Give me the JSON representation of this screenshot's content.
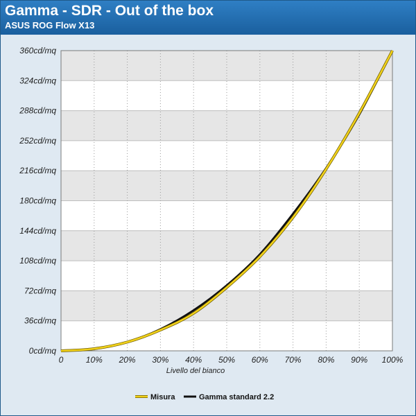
{
  "header": {
    "title": "Gamma - SDR - Out of the box",
    "subtitle": "ASUS ROG Flow X13"
  },
  "chart_data": {
    "type": "line",
    "title": "Gamma - SDR - Out of the box",
    "subtitle": "ASUS ROG Flow X13",
    "xlabel": "Livello del bianco",
    "ylabel": "",
    "x": [
      0,
      10,
      20,
      30,
      40,
      50,
      60,
      70,
      80,
      90,
      100
    ],
    "x_tick_labels": [
      "0",
      "10%",
      "20%",
      "30%",
      "40%",
      "50%",
      "60%",
      "70%",
      "80%",
      "90%",
      "100%"
    ],
    "y_tick_values": [
      0,
      36,
      72,
      108,
      144,
      180,
      216,
      252,
      288,
      324,
      360
    ],
    "y_tick_labels": [
      "0cd/mq",
      "36cd/mq",
      "72cd/mq",
      "108cd/mq",
      "144cd/mq",
      "180cd/mq",
      "216cd/mq",
      "252cd/mq",
      "288cd/mq",
      "324cd/mq",
      "360cd/mq"
    ],
    "xlim": [
      0,
      100
    ],
    "ylim": [
      0,
      360
    ],
    "grid": true,
    "legend_position": "bottom",
    "series": [
      {
        "name": "Misura",
        "color": "#f2d21b",
        "values": [
          0,
          2.5,
          10.5,
          25,
          45,
          76,
          113,
          160,
          218,
          285,
          360
        ]
      },
      {
        "name": "Gamma standard 2.2",
        "color": "#111111",
        "values": [
          0,
          2.3,
          10.6,
          25.9,
          48.5,
          78.4,
          115.7,
          164.3,
          219,
          283.5,
          360
        ]
      }
    ]
  }
}
